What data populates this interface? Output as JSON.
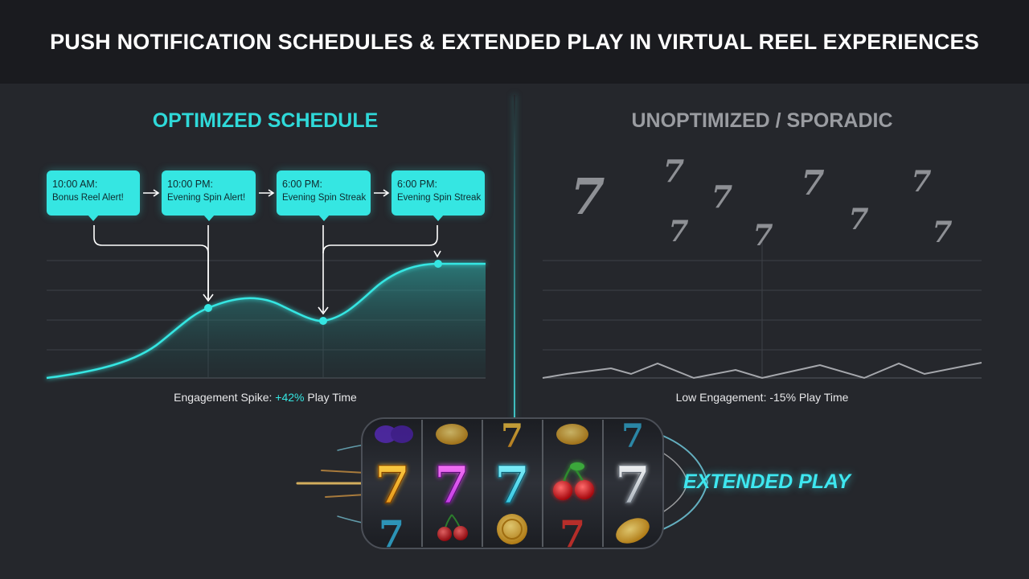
{
  "title": "PUSH NOTIFICATION SCHEDULES & EXTENDED PLAY IN VIRTUAL REEL EXPERIENCES",
  "left_panel": {
    "heading": "OPTIMIZED SCHEDULE",
    "notifications": [
      {
        "time": "10:00 AM:",
        "message": "Bonus Reel Alert!"
      },
      {
        "time": "10:00 PM:",
        "message": "Evening Spin Alert!"
      },
      {
        "time": "6:00 PM:",
        "message": "Evening Spin Streak"
      },
      {
        "time": "6:00 PM:",
        "message": "Evening Spin Streak"
      }
    ],
    "caption_prefix": "Engagement Spike: ",
    "caption_value": "+42%",
    "caption_suffix": " Play Time"
  },
  "right_panel": {
    "heading": "UNOPTIMIZED / SPORADIC",
    "caption": "Low Engagement: -15% Play Time",
    "sevens_symbol": "7"
  },
  "reel": {
    "label": "EXTENDED PLAY",
    "symbol_seven": "7",
    "symbol_cherry": "cherry-icon",
    "symbol_coin": "coin-icon",
    "symbol_plum": "plum-icon"
  },
  "colors": {
    "accent": "#35e6e2",
    "background": "#25272c",
    "title_bar": "#1a1b1f",
    "muted": "#9a9ca1"
  }
}
